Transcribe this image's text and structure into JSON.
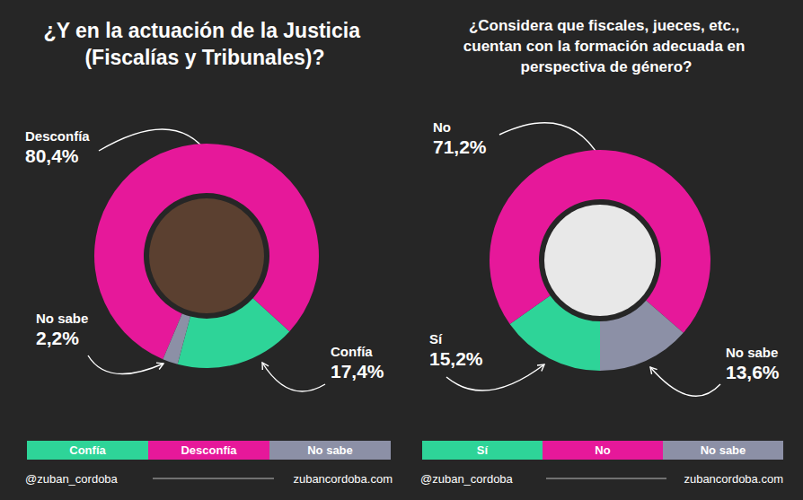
{
  "chart_data": [
    {
      "type": "pie",
      "title": "¿Y en la actuación de la Justicia (Fiscalías y Tribunales)?",
      "categories": [
        "Confía",
        "Desconfía",
        "No sabe"
      ],
      "values": [
        17.4,
        80.4,
        2.2
      ],
      "value_labels": [
        "17,4%",
        "80,4%",
        "2,2%"
      ],
      "colors": [
        "#2ed498",
        "#e6189a",
        "#8c90a6"
      ],
      "data_labels": true,
      "legend": "bottom",
      "annotations": [
        "@zuban_cordoba",
        "zubancordoba.com"
      ]
    },
    {
      "type": "pie",
      "title": "¿Considera que fiscales, jueces, etc., cuentan con la formación adecuada en perspectiva de género?",
      "categories": [
        "Sí",
        "No",
        "No sabe"
      ],
      "values": [
        15.2,
        71.2,
        13.6
      ],
      "value_labels": [
        "15,2%",
        "71,2%",
        "13,6%"
      ],
      "colors": [
        "#2ed498",
        "#e6189a",
        "#8c90a6"
      ],
      "data_labels": true,
      "legend": "bottom",
      "annotations": [
        "@zuban_cordoba",
        "zubancordoba.com"
      ]
    }
  ]
}
